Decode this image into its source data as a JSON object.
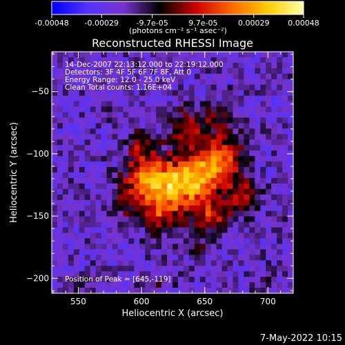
{
  "chart_data": {
    "type": "heatmap",
    "title": "Reconstructed RHESSI Image",
    "xlabel": "Heliocentric X (arcsec)",
    "ylabel": "Heliocentric Y (arcsec)",
    "xlim": [
      529,
      720
    ],
    "ylim": [
      -212,
      -18
    ],
    "x_ticks": [
      550,
      600,
      650,
      700
    ],
    "y_ticks": [
      -50,
      -100,
      -150,
      -200
    ],
    "colorbar": {
      "range": [
        -0.00048,
        0.00048
      ],
      "ticks": [
        -0.00048,
        -0.00029,
        -9.7e-05,
        9.7e-05,
        0.00029,
        0.00048
      ],
      "tick_labels": [
        "-0.00048",
        "-0.00029",
        "-9.7e-05",
        "9.7e-05",
        "0.00029",
        "0.00048"
      ],
      "unit_label": "(photons cm⁻² s⁻¹ asec⁻²)",
      "colors": [
        "#0000ff",
        "#5533ff",
        "#7733cc",
        "#000000",
        "#cc0000",
        "#ff6600",
        "#ffcc00",
        "#ffffaa"
      ]
    },
    "annotations": [
      "14-Dec-2007 22:13:12.000 to 22:19:12.000",
      "Detectors: 3F 4F 5F 6F 7F 8F, Att 0",
      "Energy Range: 12.0 - 25.0 keV",
      "Clean    Total counts: 1.16E+04"
    ],
    "peak_label": "Position of Peak = [645,-119]",
    "peak": [
      645,
      -119
    ],
    "sources": [
      {
        "x": 645,
        "y": -119,
        "amp": 0.00048,
        "sx": 16,
        "sy": 14
      },
      {
        "x": 620,
        "y": -128,
        "amp": 0.0004,
        "sx": 14,
        "sy": 13
      },
      {
        "x": 602,
        "y": -118,
        "amp": 0.0003,
        "sx": 12,
        "sy": 12
      },
      {
        "x": 665,
        "y": -100,
        "amp": 0.0003,
        "sx": 12,
        "sy": 13
      },
      {
        "x": 655,
        "y": -150,
        "amp": 0.00026,
        "sx": 10,
        "sy": 9
      },
      {
        "x": 615,
        "y": -152,
        "amp": 0.00024,
        "sx": 12,
        "sy": 10
      },
      {
        "x": 635,
        "y": -80,
        "amp": 0.00024,
        "sx": 10,
        "sy": 12
      },
      {
        "x": 600,
        "y": -92,
        "amp": 0.00018,
        "sx": 9,
        "sy": 9
      },
      {
        "x": 680,
        "y": -133,
        "amp": 0.0002,
        "sx": 9,
        "sy": 10
      },
      {
        "x": 590,
        "y": -138,
        "amp": 0.00016,
        "sx": 9,
        "sy": 9
      },
      {
        "x": 660,
        "y": -70,
        "amp": 0.00016,
        "sx": 8,
        "sy": 8
      },
      {
        "x": 645,
        "y": -172,
        "amp": 0.00014,
        "sx": 8,
        "sy": 8
      },
      {
        "x": 552,
        "y": -205,
        "amp": 0.00012,
        "sx": 7,
        "sy": 6
      },
      {
        "x": 610,
        "y": -205,
        "amp": 0.0001,
        "sx": 8,
        "sy": 5
      },
      {
        "x": 700,
        "y": -205,
        "amp": 0.00012,
        "sx": 7,
        "sy": 5
      }
    ]
  },
  "footer": {
    "date": "7-May-2022 10:15"
  }
}
